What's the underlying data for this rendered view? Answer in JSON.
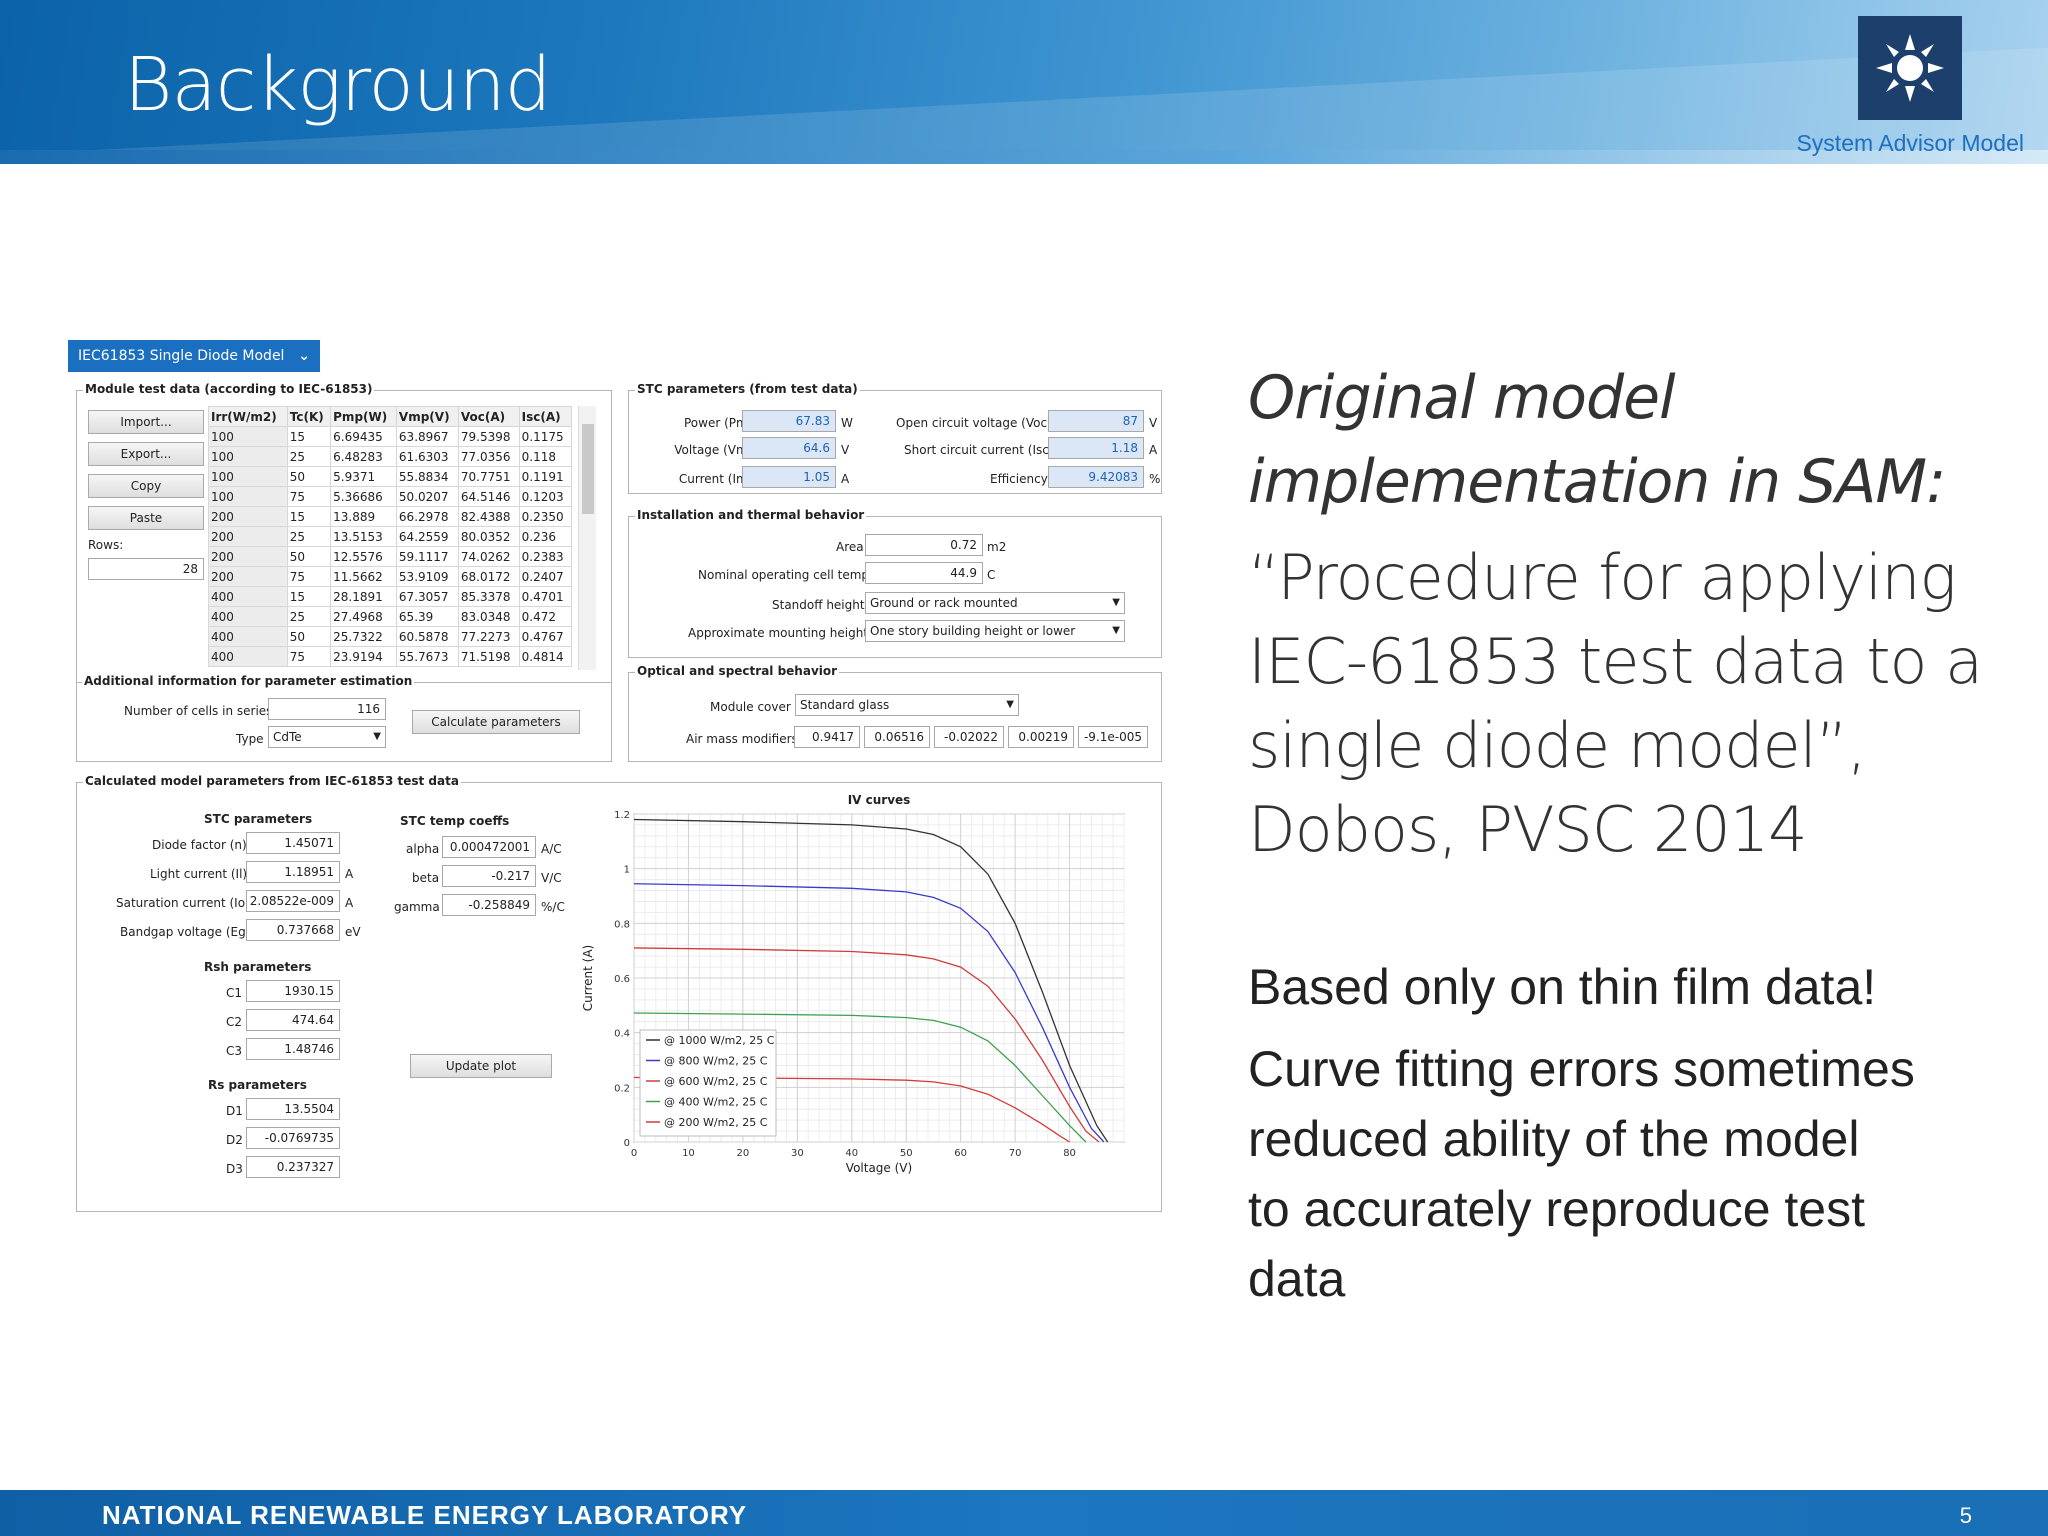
{
  "header": {
    "title": "Background",
    "product": "System Advisor Model"
  },
  "footer": {
    "org": "NATIONAL RENEWABLE ENERGY LABORATORY",
    "page": "5"
  },
  "right_text": {
    "line1": "Original model",
    "line2": "implementation in SAM:",
    "q1": "“Procedure for applying",
    "q2": "IEC-61853 test data to a",
    "q3": "single diode model”,",
    "q4": "Dobos, PVSC 2014",
    "note1": "Based only on thin film data!",
    "note2a": "Curve fitting errors sometimes",
    "note2b": "reduced ability of the model",
    "note2c": "to accurately reproduce test",
    "note2d": "data"
  },
  "app": {
    "model_selector": "IEC61853 Single Diode Model",
    "test_data": {
      "title": "Module test data (according to IEC-61853)",
      "buttons": [
        "Import...",
        "Export...",
        "Copy",
        "Paste"
      ],
      "rows_label": "Rows:",
      "rows_value": "28",
      "columns": [
        "Irr(W/m2)",
        "Tc(K)",
        "Pmp(W)",
        "Vmp(V)",
        "Voc(A)",
        "Isc(A)"
      ],
      "rows": [
        [
          "100",
          "15",
          "6.69435",
          "63.8967",
          "79.5398",
          "0.1175"
        ],
        [
          "100",
          "25",
          "6.48283",
          "61.6303",
          "77.0356",
          "0.118"
        ],
        [
          "100",
          "50",
          "5.9371",
          "55.8834",
          "70.7751",
          "0.1191"
        ],
        [
          "100",
          "75",
          "5.36686",
          "50.0207",
          "64.5146",
          "0.1203"
        ],
        [
          "200",
          "15",
          "13.889",
          "66.2978",
          "82.4388",
          "0.2350"
        ],
        [
          "200",
          "25",
          "13.5153",
          "64.2559",
          "80.0352",
          "0.236"
        ],
        [
          "200",
          "50",
          "12.5576",
          "59.1117",
          "74.0262",
          "0.2383"
        ],
        [
          "200",
          "75",
          "11.5662",
          "53.9109",
          "68.0172",
          "0.2407"
        ],
        [
          "400",
          "15",
          "28.1891",
          "67.3057",
          "85.3378",
          "0.4701"
        ],
        [
          "400",
          "25",
          "27.4968",
          "65.39",
          "83.0348",
          "0.472"
        ],
        [
          "400",
          "50",
          "25.7322",
          "60.5878",
          "77.2273",
          "0.4767"
        ],
        [
          "400",
          "75",
          "23.9194",
          "55.7673",
          "71.5198",
          "0.4814"
        ]
      ]
    },
    "additional": {
      "title": "Additional information for parameter estimation",
      "cells_label": "Number of cells in series",
      "cells_value": "116",
      "type_label": "Type",
      "type_value": "CdTe",
      "calc_button": "Calculate parameters"
    },
    "stc": {
      "title": "STC parameters (from test data)",
      "power_label": "Power (Pmp)",
      "power_value": "67.83",
      "power_unit": "W",
      "voltage_label": "Voltage (Vmp)",
      "voltage_value": "64.6",
      "voltage_unit": "V",
      "current_label": "Current (Imp)",
      "current_value": "1.05",
      "current_unit": "A",
      "voc_label": "Open circuit voltage (Voc)",
      "voc_value": "87",
      "voc_unit": "V",
      "isc_label": "Short circuit current (Isc)",
      "isc_value": "1.18",
      "isc_unit": "A",
      "eff_label": "Efficiency",
      "eff_value": "9.42083",
      "eff_unit": "%"
    },
    "install": {
      "title": "Installation and thermal behavior",
      "area_label": "Area",
      "area_value": "0.72",
      "area_unit": "m2",
      "noct_label": "Nominal operating cell temp",
      "noct_value": "44.9",
      "noct_unit": "C",
      "standoff_label": "Standoff height",
      "standoff_value": "Ground or rack mounted",
      "mount_label": "Approximate mounting height",
      "mount_value": "One story building height or lower"
    },
    "optical": {
      "title": "Optical and spectral behavior",
      "cover_label": "Module cover",
      "cover_value": "Standard glass",
      "am_label": "Air mass modifiers",
      "am_values": [
        "0.9417",
        "0.06516",
        "-0.02022",
        "0.00219",
        "-9.1e-005"
      ]
    },
    "calculated": {
      "title": "Calculated model parameters from IEC-61853 test data",
      "stc_title": "STC parameters",
      "n_label": "Diode factor (n)",
      "n_value": "1.45071",
      "il_label": "Light current (Il)",
      "il_value": "1.18951",
      "il_unit": "A",
      "io_label": "Saturation current (Io)",
      "io_value": "2.08522e-009",
      "io_unit": "A",
      "eg_label": "Bandgap voltage (Eg)",
      "eg_value": "0.737668",
      "eg_unit": "eV",
      "rsh_title": "Rsh parameters",
      "c1_label": "C1",
      "c1_value": "1930.15",
      "c2_label": "C2",
      "c2_value": "474.64",
      "c3_label": "C3",
      "c3_value": "1.48746",
      "rs_title": "Rs parameters",
      "d1_label": "D1",
      "d1_value": "13.5504",
      "d2_label": "D2",
      "d2_value": "-0.0769735",
      "d3_label": "D3",
      "d3_value": "0.237327",
      "tc_title": "STC temp coeffs",
      "alpha_label": "alpha",
      "alpha_value": "0.000472001",
      "alpha_unit": "A/C",
      "beta_label": "beta",
      "beta_value": "-0.217",
      "beta_unit": "V/C",
      "gamma_label": "gamma",
      "gamma_value": "-0.258849",
      "gamma_unit": "%/C",
      "update_button": "Update plot"
    }
  },
  "chart_data": {
    "type": "line",
    "title": "IV curves",
    "xlabel": "Voltage (V)",
    "ylabel": "Current (A)",
    "xlim": [
      0,
      90
    ],
    "ylim": [
      0,
      1.2
    ],
    "xticks": [
      "0",
      "10",
      "20",
      "30",
      "40",
      "50",
      "60",
      "70",
      "80"
    ],
    "yticks": [
      "0",
      "0.2",
      "0.4",
      "0.6",
      "0.8",
      "1",
      "1.2"
    ],
    "grid": true,
    "legend_position": "bottom-left",
    "series": [
      {
        "name": "@ 1000 W/m2, 25 C",
        "color": "#333333",
        "isc": 1.18,
        "voc": 87,
        "points": [
          [
            0,
            1.18
          ],
          [
            20,
            1.172
          ],
          [
            40,
            1.16
          ],
          [
            50,
            1.145
          ],
          [
            55,
            1.125
          ],
          [
            60,
            1.08
          ],
          [
            65,
            0.98
          ],
          [
            70,
            0.8
          ],
          [
            75,
            0.55
          ],
          [
            80,
            0.28
          ],
          [
            85,
            0.06
          ],
          [
            87,
            0
          ]
        ]
      },
      {
        "name": "@ 800 W/m2, 25 C",
        "color": "#3a3ad0",
        "isc": 0.945,
        "voc": 86.3,
        "points": [
          [
            0,
            0.945
          ],
          [
            20,
            0.938
          ],
          [
            40,
            0.928
          ],
          [
            50,
            0.915
          ],
          [
            55,
            0.895
          ],
          [
            60,
            0.855
          ],
          [
            65,
            0.77
          ],
          [
            70,
            0.62
          ],
          [
            75,
            0.42
          ],
          [
            80,
            0.2
          ],
          [
            84,
            0.05
          ],
          [
            86.3,
            0
          ]
        ]
      },
      {
        "name": "@ 600 W/m2, 25 C",
        "color": "#d23b3b",
        "isc": 0.71,
        "voc": 85.4,
        "points": [
          [
            0,
            0.71
          ],
          [
            20,
            0.705
          ],
          [
            40,
            0.697
          ],
          [
            50,
            0.685
          ],
          [
            55,
            0.67
          ],
          [
            60,
            0.64
          ],
          [
            65,
            0.57
          ],
          [
            70,
            0.45
          ],
          [
            75,
            0.3
          ],
          [
            80,
            0.13
          ],
          [
            83,
            0.04
          ],
          [
            85.4,
            0
          ]
        ]
      },
      {
        "name": "@ 400 W/m2, 25 C",
        "color": "#3fa050",
        "isc": 0.472,
        "voc": 83.0,
        "points": [
          [
            0,
            0.472
          ],
          [
            20,
            0.468
          ],
          [
            40,
            0.463
          ],
          [
            50,
            0.455
          ],
          [
            55,
            0.445
          ],
          [
            60,
            0.42
          ],
          [
            65,
            0.37
          ],
          [
            70,
            0.28
          ],
          [
            75,
            0.17
          ],
          [
            80,
            0.06
          ],
          [
            83.0,
            0
          ]
        ]
      },
      {
        "name": "@ 200 W/m2, 25 C",
        "color": "#d23b3b",
        "isc": 0.236,
        "voc": 80.0,
        "points": [
          [
            0,
            0.236
          ],
          [
            20,
            0.234
          ],
          [
            40,
            0.231
          ],
          [
            50,
            0.226
          ],
          [
            55,
            0.22
          ],
          [
            60,
            0.205
          ],
          [
            65,
            0.175
          ],
          [
            70,
            0.125
          ],
          [
            75,
            0.065
          ],
          [
            78,
            0.025
          ],
          [
            80.0,
            0
          ]
        ]
      }
    ]
  },
  "colors": {
    "accent": "#1b6fc1",
    "header_dark": "#0b62a8",
    "logo_bg": "#1d3f6b"
  }
}
